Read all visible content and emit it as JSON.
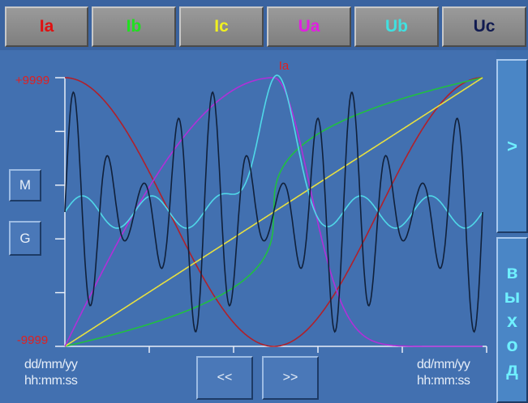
{
  "tabs": [
    {
      "label": "Ia",
      "color": "#e01010"
    },
    {
      "label": "Ib",
      "color": "#20e020"
    },
    {
      "label": "Ic",
      "color": "#f0f020"
    },
    {
      "label": "Ua",
      "color": "#e020e0"
    },
    {
      "label": "Ub",
      "color": "#40e0e0"
    },
    {
      "label": "Uc",
      "color": "#101a50"
    }
  ],
  "plot": {
    "selected_signal": "Ia",
    "y_max_label": "+9999",
    "y_min_label": "-9999",
    "start_date": "dd/mm/yy",
    "start_time": "hh:mm:ss",
    "end_date": "dd/mm/yy",
    "end_time": "hh:mm:ss"
  },
  "buttons": {
    "m": "M",
    "g": "G",
    "prev": "<<",
    "next": ">>",
    "forward": ">",
    "exit_letters": [
      "в",
      "ы",
      "х",
      "о",
      "д"
    ]
  },
  "series_colors": {
    "Ia": "#b0202a",
    "Ib": "#20c040",
    "Ic": "#e8e040",
    "Ua": "#b030d8",
    "Ub": "#50d8e8",
    "Uc": "#10203a"
  }
}
